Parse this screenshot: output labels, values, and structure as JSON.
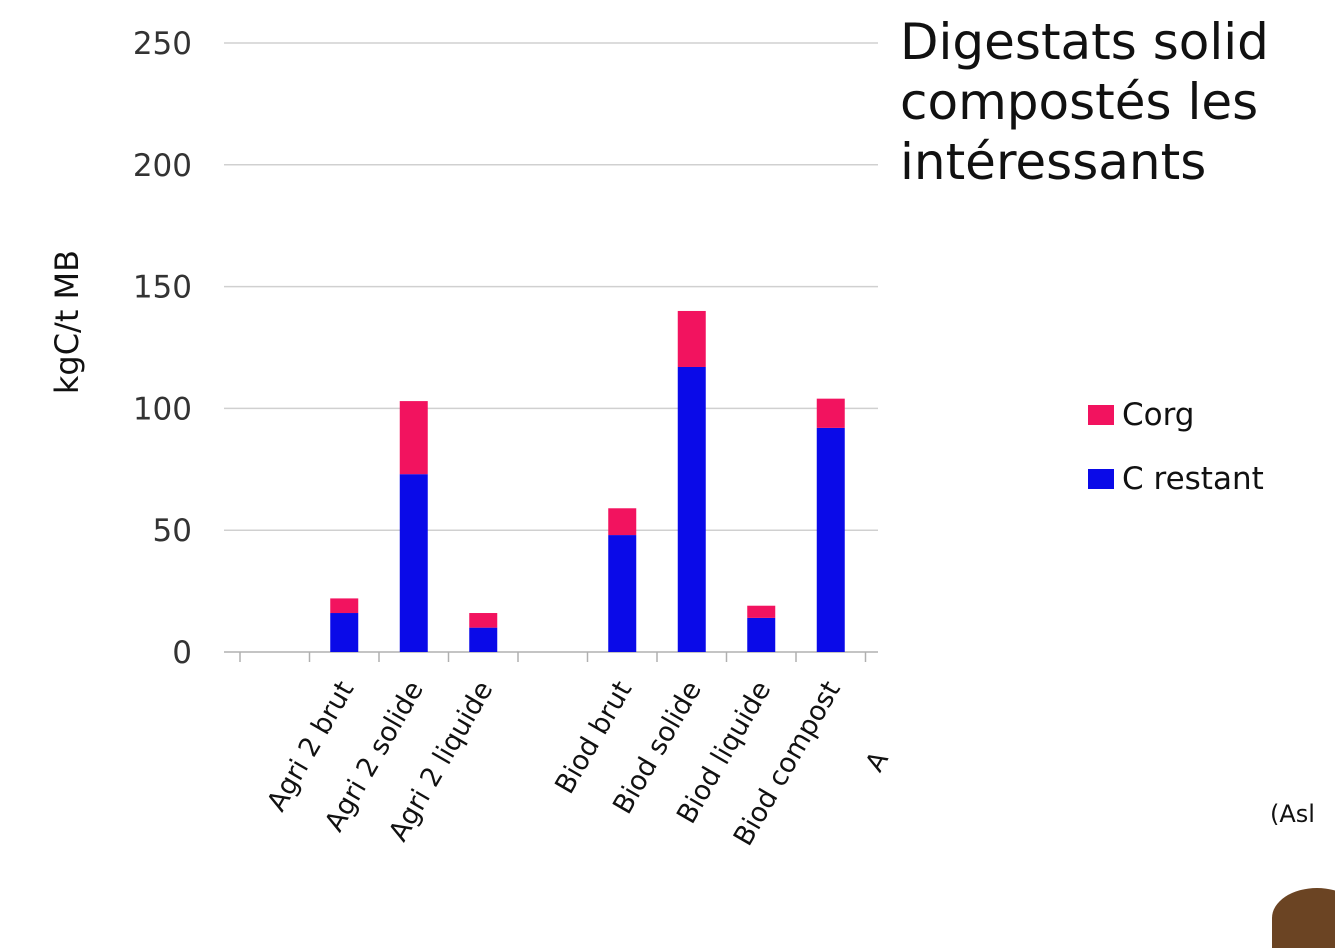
{
  "slide": {
    "title_lines": [
      "Digestats solid",
      "compostés  les",
      "intéressants"
    ],
    "citation": "(Asl",
    "stray_label": "A"
  },
  "colors": {
    "corg": "#f2135f",
    "c_restant": "#0a0ae8",
    "gridline": "#d0d0d0",
    "axis": "#b0b0b0",
    "text": "#111111"
  },
  "chart_data": {
    "type": "bar",
    "stacked": true,
    "ylabel": "kgC/t MB",
    "xlabel": "",
    "title": "",
    "ylim": [
      0,
      250
    ],
    "yticks": [
      0,
      50,
      100,
      150,
      200,
      250
    ],
    "grid": true,
    "legend_position": "right",
    "categories": [
      "",
      "Agri 2 brut",
      "Agri 2 solide",
      "Agri 2 liquide",
      "",
      "Biod brut",
      "Biod solide",
      "Biod liquide",
      "Biod compost"
    ],
    "series": [
      {
        "name": "C restant",
        "color_key": "c_restant",
        "values": [
          null,
          16,
          73,
          10,
          null,
          48,
          117,
          14,
          92
        ]
      },
      {
        "name": "Corg",
        "color_key": "corg",
        "values": [
          null,
          6,
          30,
          6,
          null,
          11,
          23,
          5,
          12
        ]
      }
    ],
    "legend_order": [
      "Corg",
      "C restant"
    ]
  }
}
